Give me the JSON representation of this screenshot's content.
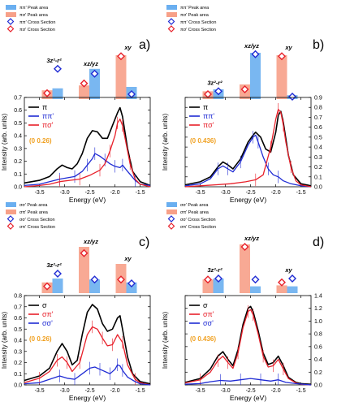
{
  "figure": {
    "xlabel": "Energy (eV)",
    "ylabel": "Intensity (arb. units)",
    "label_colors": {
      "black": "#000000",
      "red": "#e8202a",
      "blue": "#1f2bd4",
      "q": "#f0a020"
    }
  },
  "chart_data": [
    {
      "type": "line",
      "panel": "a)",
      "q_label": "(0  0.26)",
      "legend": [
        {
          "name": "π",
          "color": "black"
        },
        {
          "name": "ππ'",
          "color": "blue"
        },
        {
          "name": "πσ'",
          "color": "red"
        }
      ],
      "xlim": [
        -3.8,
        -1.3
      ],
      "ylim": [
        0,
        0.7
      ],
      "y_side": "left",
      "xticks": [
        -3.5,
        -3.0,
        -2.5,
        -2.0,
        -1.5
      ],
      "yticks": [
        0.0,
        0.1,
        0.2,
        0.3,
        0.4,
        0.5,
        0.6,
        0.7
      ],
      "series": [
        {
          "color": "black",
          "x": [
            -3.8,
            -3.5,
            -3.3,
            -3.15,
            -3.05,
            -2.95,
            -2.85,
            -2.75,
            -2.65,
            -2.55,
            -2.45,
            -2.35,
            -2.25,
            -2.15,
            -2.05,
            -1.95,
            -1.9,
            -1.85,
            -1.75,
            -1.65,
            -1.5,
            -1.3
          ],
          "y": [
            0.03,
            0.05,
            0.08,
            0.14,
            0.17,
            0.15,
            0.14,
            0.18,
            0.26,
            0.38,
            0.44,
            0.43,
            0.38,
            0.38,
            0.48,
            0.58,
            0.62,
            0.55,
            0.3,
            0.12,
            0.04,
            0.01
          ]
        },
        {
          "color": "blue",
          "x": [
            -3.8,
            -3.5,
            -3.3,
            -3.1,
            -2.95,
            -2.8,
            -2.65,
            -2.55,
            -2.45,
            -2.4,
            -2.3,
            -2.2,
            -2.1,
            -2.0,
            -1.9,
            -1.85,
            -1.75,
            -1.6,
            -1.5,
            -1.3
          ],
          "y": [
            0.01,
            0.02,
            0.04,
            0.06,
            0.07,
            0.08,
            0.12,
            0.17,
            0.22,
            0.26,
            0.24,
            0.21,
            0.18,
            0.16,
            0.15,
            0.17,
            0.12,
            0.05,
            0.02,
            0.01
          ]
        },
        {
          "color": "red",
          "x": [
            -3.8,
            -3.5,
            -3.3,
            -3.1,
            -2.9,
            -2.7,
            -2.5,
            -2.3,
            -2.2,
            -2.1,
            -2.0,
            -1.95,
            -1.9,
            -1.85,
            -1.8,
            -1.7,
            -1.6,
            -1.5,
            -1.3
          ],
          "y": [
            0.0,
            0.01,
            0.02,
            0.04,
            0.05,
            0.06,
            0.09,
            0.13,
            0.18,
            0.28,
            0.4,
            0.5,
            0.53,
            0.48,
            0.38,
            0.18,
            0.06,
            0.02,
            0.0
          ]
        }
      ],
      "bars": {
        "orbitals": [
          "3z²-r²",
          "xz/yz",
          "xy"
        ],
        "legend": [
          "ππ' Peak area",
          "πσ' Peak area",
          "ππ' Cross Section",
          "πσ' Cross Section"
        ],
        "pairs": [
          {
            "label": "3z²-r²",
            "red": 0.18,
            "blue": 0.22,
            "red_marker": 0.12,
            "blue_marker": 0.62
          },
          {
            "label": "xz/yz",
            "red": 0.28,
            "blue": 0.62,
            "red_marker": 0.32,
            "blue_marker": 0.52
          },
          {
            "label": "xy",
            "red": 0.9,
            "blue": 0.25,
            "red_marker": 0.88,
            "blue_marker": 0.1
          }
        ]
      }
    },
    {
      "type": "line",
      "panel": "b)",
      "q_label": "(0  0.436)",
      "legend": [
        {
          "name": "π",
          "color": "black"
        },
        {
          "name": "ππ'",
          "color": "blue"
        },
        {
          "name": "πσ'",
          "color": "red"
        }
      ],
      "xlim": [
        -3.8,
        -1.3
      ],
      "ylim": [
        0,
        0.9
      ],
      "y_side": "right",
      "xticks": [
        -3.5,
        -3.0,
        -2.5,
        -2.0,
        -1.5
      ],
      "yticks": [
        0.0,
        0.1,
        0.2,
        0.3,
        0.4,
        0.5,
        0.6,
        0.7,
        0.8,
        0.9
      ],
      "series": [
        {
          "color": "black",
          "x": [
            -3.8,
            -3.5,
            -3.3,
            -3.15,
            -3.05,
            -2.95,
            -2.85,
            -2.7,
            -2.55,
            -2.45,
            -2.4,
            -2.3,
            -2.2,
            -2.1,
            -2.0,
            -1.95,
            -1.9,
            -1.85,
            -1.75,
            -1.65,
            -1.5,
            -1.3
          ],
          "y": [
            0.02,
            0.05,
            0.1,
            0.2,
            0.25,
            0.22,
            0.18,
            0.28,
            0.45,
            0.52,
            0.55,
            0.5,
            0.38,
            0.35,
            0.55,
            0.72,
            0.76,
            0.65,
            0.32,
            0.12,
            0.03,
            0.01
          ]
        },
        {
          "color": "blue",
          "x": [
            -3.8,
            -3.5,
            -3.3,
            -3.15,
            -3.05,
            -2.95,
            -2.85,
            -2.7,
            -2.55,
            -2.45,
            -2.4,
            -2.35,
            -2.25,
            -2.15,
            -2.05,
            -1.95,
            -1.85,
            -1.7,
            -1.5,
            -1.3
          ],
          "y": [
            0.01,
            0.03,
            0.08,
            0.18,
            0.21,
            0.18,
            0.15,
            0.25,
            0.42,
            0.5,
            0.52,
            0.45,
            0.3,
            0.18,
            0.12,
            0.1,
            0.06,
            0.03,
            0.01,
            0.0
          ]
        },
        {
          "color": "red",
          "x": [
            -3.8,
            -3.5,
            -3.2,
            -2.9,
            -2.6,
            -2.4,
            -2.25,
            -2.1,
            -2.0,
            -1.95,
            -1.9,
            -1.85,
            -1.8,
            -1.7,
            -1.6,
            -1.5,
            -1.3
          ],
          "y": [
            0.0,
            0.01,
            0.02,
            0.03,
            0.05,
            0.07,
            0.12,
            0.4,
            0.68,
            0.78,
            0.75,
            0.62,
            0.45,
            0.2,
            0.06,
            0.02,
            0.0
          ]
        }
      ],
      "bars": {
        "orbitals": [
          "3z²-r²",
          "xz/yz",
          "xy"
        ],
        "legend": [
          "ππ' Peak area",
          "πσ' Peak area",
          "ππ' Cross Section",
          "πσ' Cross Section"
        ],
        "pairs": [
          {
            "label": "3z²-r²",
            "red": 0.16,
            "blue": 0.2,
            "red_marker": 0.1,
            "blue_marker": 0.16
          },
          {
            "label": "xz/yz",
            "red": 0.3,
            "blue": 0.95,
            "red_marker": 0.2,
            "blue_marker": 0.92
          },
          {
            "label": "xy",
            "red": 0.9,
            "blue": 0.08,
            "red_marker": 0.88,
            "blue_marker": 0.05
          }
        ]
      }
    },
    {
      "type": "line",
      "panel": "c)",
      "q_label": "(0  0.26)",
      "legend": [
        {
          "name": "σ",
          "color": "black"
        },
        {
          "name": "σπ'",
          "color": "red"
        },
        {
          "name": "σσ'",
          "color": "blue"
        }
      ],
      "xlim": [
        -3.8,
        -1.3
      ],
      "ylim": [
        0,
        0.8
      ],
      "y_side": "left",
      "xticks": [
        -3.5,
        -3.0,
        -2.5,
        -2.0,
        -1.5
      ],
      "yticks": [
        0.0,
        0.1,
        0.2,
        0.3,
        0.4,
        0.5,
        0.6,
        0.7,
        0.8
      ],
      "series": [
        {
          "color": "black",
          "x": [
            -3.8,
            -3.5,
            -3.3,
            -3.15,
            -3.05,
            -2.95,
            -2.85,
            -2.75,
            -2.65,
            -2.55,
            -2.45,
            -2.35,
            -2.25,
            -2.15,
            -2.05,
            -1.95,
            -1.9,
            -1.85,
            -1.75,
            -1.65,
            -1.5,
            -1.3
          ],
          "y": [
            0.04,
            0.08,
            0.15,
            0.3,
            0.37,
            0.3,
            0.18,
            0.22,
            0.45,
            0.65,
            0.72,
            0.68,
            0.55,
            0.48,
            0.5,
            0.6,
            0.62,
            0.5,
            0.25,
            0.1,
            0.03,
            0.01
          ]
        },
        {
          "color": "red",
          "x": [
            -3.8,
            -3.5,
            -3.3,
            -3.15,
            -3.05,
            -2.95,
            -2.85,
            -2.7,
            -2.55,
            -2.45,
            -2.35,
            -2.25,
            -2.15,
            -2.05,
            -1.95,
            -1.85,
            -1.75,
            -1.6,
            -1.5,
            -1.3
          ],
          "y": [
            0.02,
            0.06,
            0.12,
            0.22,
            0.25,
            0.2,
            0.12,
            0.2,
            0.45,
            0.52,
            0.5,
            0.42,
            0.35,
            0.36,
            0.45,
            0.38,
            0.18,
            0.05,
            0.02,
            0.0
          ]
        },
        {
          "color": "blue",
          "x": [
            -3.8,
            -3.5,
            -3.3,
            -3.1,
            -2.95,
            -2.8,
            -2.65,
            -2.5,
            -2.4,
            -2.3,
            -2.2,
            -2.1,
            -2.0,
            -1.95,
            -1.9,
            -1.85,
            -1.75,
            -1.6,
            -1.5,
            -1.3
          ],
          "y": [
            0.01,
            0.02,
            0.05,
            0.08,
            0.06,
            0.05,
            0.1,
            0.15,
            0.16,
            0.14,
            0.12,
            0.1,
            0.14,
            0.18,
            0.17,
            0.13,
            0.07,
            0.03,
            0.01,
            0.0
          ]
        }
      ],
      "bars": {
        "orbitals": [
          "3z²-r²",
          "xz/yz",
          "xy"
        ],
        "legend": [
          "σσ' Peak area",
          "σπ' Peak area",
          "σσ' Cross Section",
          "σπ' Cross Section"
        ],
        "pairs": [
          {
            "label": "3z²-r²",
            "red": 0.22,
            "blue": 0.3,
            "red_marker": 0.14,
            "blue_marker": 0.4
          },
          {
            "label": "xz/yz",
            "red": 0.95,
            "blue": 0.28,
            "red_marker": 0.82,
            "blue_marker": 0.28
          },
          {
            "label": "xy",
            "red": 0.6,
            "blue": 0.22,
            "red_marker": 0.28,
            "blue_marker": 0.2
          }
        ]
      }
    },
    {
      "type": "line",
      "panel": "d)",
      "q_label": "(0  0.436)",
      "legend": [
        {
          "name": "σ",
          "color": "black"
        },
        {
          "name": "σπ'",
          "color": "red"
        },
        {
          "name": "σσ'",
          "color": "blue"
        }
      ],
      "xlim": [
        -3.8,
        -1.3
      ],
      "ylim": [
        0,
        1.4
      ],
      "y_side": "right",
      "xticks": [
        -3.5,
        -3.0,
        -2.5,
        -2.0,
        -1.5
      ],
      "yticks": [
        0.0,
        0.2,
        0.4,
        0.6,
        0.8,
        1.0,
        1.2,
        1.4
      ],
      "series": [
        {
          "color": "black",
          "x": [
            -3.8,
            -3.5,
            -3.3,
            -3.15,
            -3.05,
            -2.95,
            -2.85,
            -2.75,
            -2.65,
            -2.55,
            -2.5,
            -2.45,
            -2.35,
            -2.25,
            -2.15,
            -2.05,
            -1.95,
            -1.85,
            -1.75,
            -1.6,
            -1.5,
            -1.3
          ],
          "y": [
            0.04,
            0.1,
            0.25,
            0.45,
            0.52,
            0.4,
            0.3,
            0.55,
            0.95,
            1.2,
            1.23,
            1.15,
            0.85,
            0.5,
            0.32,
            0.35,
            0.45,
            0.3,
            0.12,
            0.04,
            0.02,
            0.01
          ]
        },
        {
          "color": "red",
          "x": [
            -3.8,
            -3.5,
            -3.3,
            -3.15,
            -3.05,
            -2.95,
            -2.85,
            -2.75,
            -2.65,
            -2.55,
            -2.5,
            -2.45,
            -2.35,
            -2.25,
            -2.15,
            -2.05,
            -1.95,
            -1.85,
            -1.75,
            -1.6,
            -1.5,
            -1.3
          ],
          "y": [
            0.03,
            0.08,
            0.2,
            0.38,
            0.45,
            0.35,
            0.26,
            0.5,
            0.9,
            1.15,
            1.18,
            1.1,
            0.8,
            0.45,
            0.28,
            0.3,
            0.4,
            0.25,
            0.1,
            0.03,
            0.01,
            0.0
          ]
        },
        {
          "color": "blue",
          "x": [
            -3.8,
            -3.5,
            -3.3,
            -3.1,
            -2.9,
            -2.7,
            -2.5,
            -2.3,
            -2.1,
            -1.95,
            -1.8,
            -1.6,
            -1.3
          ],
          "y": [
            0.01,
            0.02,
            0.05,
            0.07,
            0.06,
            0.08,
            0.1,
            0.08,
            0.06,
            0.08,
            0.04,
            0.02,
            0.0
          ]
        }
      ],
      "bars": {
        "orbitals": [
          "3z²-r²",
          "xz/yz",
          "xy"
        ],
        "legend": [
          "σσ' Peak area",
          "σπ' Peak area",
          "σσ' Cross Section",
          "σπ' Cross Section"
        ],
        "pairs": [
          {
            "label": "3z²-r²",
            "red": 0.28,
            "blue": 0.3,
            "red_marker": 0.28,
            "blue_marker": 0.3
          },
          {
            "label": "xz/yz",
            "red": 1.0,
            "blue": 0.14,
            "red_marker": 0.95,
            "blue_marker": 0.28
          },
          {
            "label": "xy",
            "red": 0.16,
            "blue": 0.14,
            "red_marker": 0.22,
            "blue_marker": 0.3
          }
        ]
      }
    }
  ]
}
